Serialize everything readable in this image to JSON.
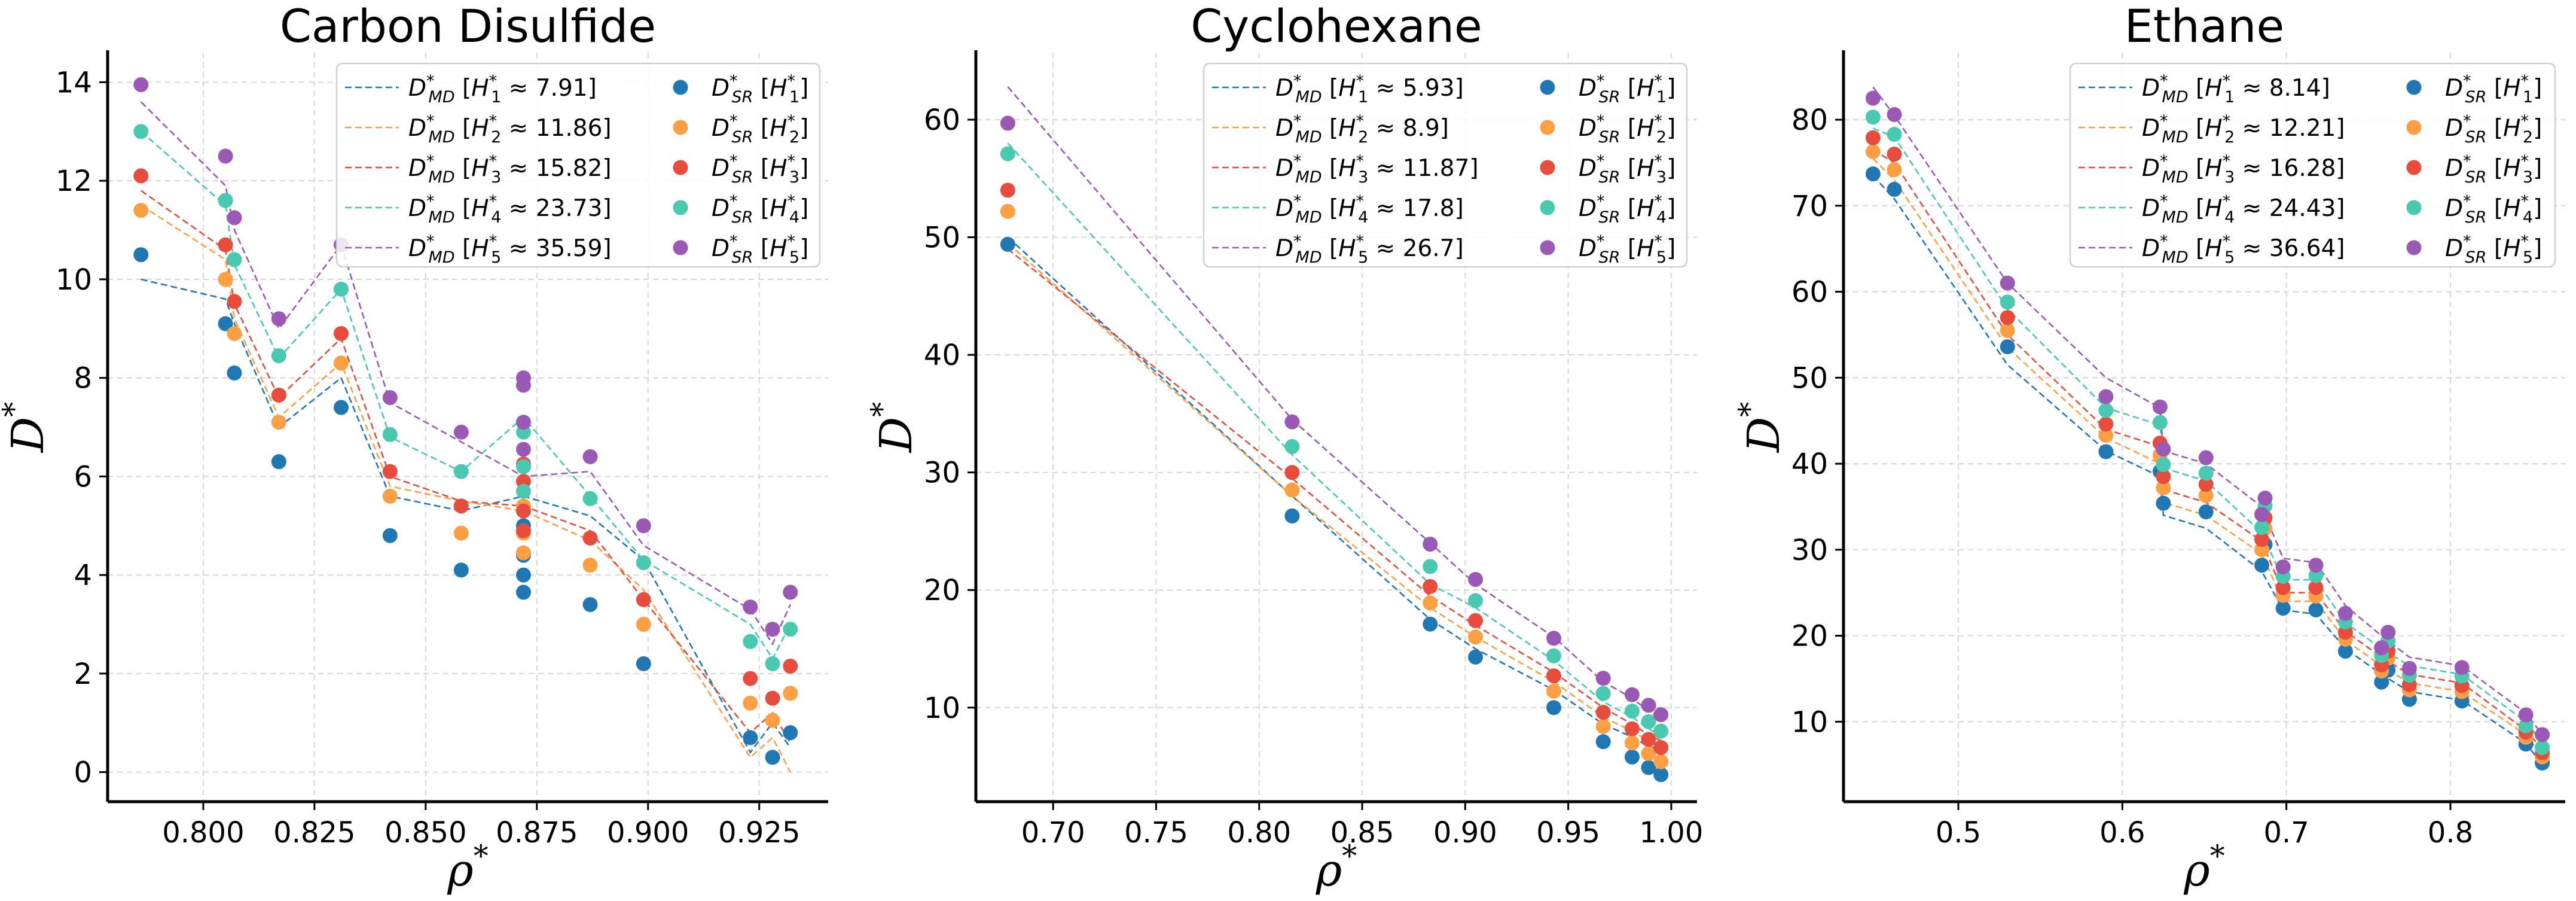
{
  "chart_data": [
    {
      "type": "line+scatter",
      "title": "Carbon Disulfide",
      "xlabel": "ρ",
      "xlabel_sup": "*",
      "ylabel": "D",
      "ylabel_sup": "*",
      "xlim": [
        0.7785,
        0.9405
      ],
      "ylim": [
        -0.6,
        14.6
      ],
      "xticks": [
        0.8,
        0.825,
        0.85,
        0.875,
        0.9,
        0.925
      ],
      "xtick_labels": [
        "0.800",
        "0.825",
        "0.850",
        "0.875",
        "0.900",
        "0.925"
      ],
      "yticks": [
        0,
        2,
        4,
        6,
        8,
        10,
        12,
        14
      ],
      "ytick_labels": [
        "0",
        "2",
        "4",
        "6",
        "8",
        "10",
        "12",
        "14"
      ],
      "grid": true,
      "legend": "top-right",
      "md_labels": [
        "7.91",
        "11.86",
        "15.82",
        "23.73",
        "35.59"
      ],
      "x": [
        0.786,
        0.805,
        0.807,
        0.817,
        0.831,
        0.842,
        0.858,
        0.872,
        0.887,
        0.899,
        0.923,
        0.928,
        0.932
      ],
      "md": [
        [
          10.0,
          9.6,
          9.1,
          7.0,
          8.0,
          5.6,
          5.3,
          5.6,
          5.2,
          4.3,
          0.4,
          1.0,
          0.5
        ],
        [
          11.5,
          10.4,
          9.2,
          7.2,
          8.3,
          5.8,
          5.5,
          5.3,
          4.7,
          3.7,
          0.3,
          0.7,
          0.0
        ],
        [
          11.8,
          10.6,
          9.5,
          7.6,
          8.8,
          6.0,
          5.5,
          5.4,
          4.9,
          3.5,
          0.8,
          1.2,
          0.6
        ],
        [
          13.0,
          11.5,
          10.3,
          8.4,
          9.8,
          6.8,
          6.1,
          7.2,
          5.6,
          4.3,
          3.0,
          2.3,
          3.0
        ],
        [
          13.6,
          11.9,
          11.0,
          9.0,
          10.7,
          7.5,
          6.7,
          6.0,
          6.1,
          4.6,
          3.3,
          2.6,
          3.4
        ]
      ],
      "sr_x": [
        0.786,
        0.805,
        0.807,
        0.817,
        0.831,
        0.842,
        0.858,
        0.872,
        0.872,
        0.872,
        0.872,
        0.887,
        0.899,
        0.923,
        0.928,
        0.932
      ],
      "sr": [
        [
          10.5,
          9.1,
          8.1,
          6.3,
          7.4,
          4.8,
          4.1,
          3.65,
          4.0,
          4.4,
          5.0,
          3.4,
          2.2,
          0.7,
          0.3,
          0.8
        ],
        [
          11.4,
          10.0,
          8.9,
          7.1,
          8.3,
          5.6,
          4.85,
          4.45,
          4.85,
          5.4,
          6.2,
          4.2,
          3.0,
          1.4,
          1.05,
          1.6
        ],
        [
          12.1,
          10.7,
          9.55,
          7.65,
          8.9,
          6.1,
          5.4,
          4.9,
          5.3,
          5.9,
          6.25,
          4.75,
          3.5,
          1.9,
          1.5,
          2.15
        ],
        [
          13.0,
          11.6,
          10.4,
          8.45,
          9.8,
          6.85,
          6.1,
          5.7,
          6.2,
          6.9,
          7.1,
          5.55,
          4.25,
          2.65,
          2.2,
          2.9
        ],
        [
          13.95,
          12.5,
          11.25,
          9.2,
          10.7,
          7.6,
          6.9,
          6.55,
          7.1,
          7.85,
          8.0,
          6.4,
          5.0,
          3.35,
          2.9,
          3.65
        ]
      ]
    },
    {
      "type": "line+scatter",
      "title": "Cyclohexane",
      "xlabel": "ρ",
      "xlabel_sup": "*",
      "ylabel": "D",
      "ylabel_sup": "*",
      "xlim": [
        0.6625,
        1.0125
      ],
      "ylim": [
        2,
        65.7
      ],
      "xticks": [
        0.7,
        0.75,
        0.8,
        0.85,
        0.9,
        0.95,
        1.0
      ],
      "xtick_labels": [
        "0.70",
        "0.75",
        "0.80",
        "0.85",
        "0.90",
        "0.95",
        "1.00"
      ],
      "yticks": [
        10,
        20,
        30,
        40,
        50,
        60
      ],
      "ytick_labels": [
        "10",
        "20",
        "30",
        "40",
        "50",
        "60"
      ],
      "grid": true,
      "legend": "top-right",
      "md_labels": [
        "5.93",
        "8.9",
        "11.87",
        "17.8",
        "26.7"
      ],
      "x": [
        0.678,
        0.816,
        0.883,
        0.905,
        0.943,
        0.967,
        0.981,
        0.989,
        0.995
      ],
      "md": [
        [
          50.0,
          28.0,
          17.5,
          15.0,
          11.5,
          8.6,
          7.5,
          6.7,
          6.5
        ],
        [
          49.5,
          28.0,
          18.5,
          16.0,
          12.2,
          9.2,
          8.0,
          7.2,
          6.9
        ],
        [
          49.0,
          29.5,
          19.5,
          17.0,
          13.0,
          10.0,
          8.6,
          7.7,
          7.2
        ],
        [
          58.0,
          31.5,
          20.5,
          18.5,
          14.0,
          10.5,
          9.2,
          8.2,
          7.6
        ],
        [
          62.8,
          34.5,
          24.0,
          20.5,
          16.0,
          12.2,
          10.8,
          9.7,
          9.0
        ]
      ],
      "sr_x": [
        0.678,
        0.816,
        0.883,
        0.905,
        0.943,
        0.967,
        0.981,
        0.989,
        0.995
      ],
      "sr": [
        [
          49.4,
          26.3,
          17.1,
          14.3,
          10.0,
          7.1,
          5.8,
          4.9,
          4.3
        ],
        [
          52.2,
          28.5,
          18.9,
          16.0,
          11.4,
          8.4,
          7.0,
          6.1,
          5.4
        ],
        [
          54.0,
          30.0,
          20.3,
          17.4,
          12.7,
          9.6,
          8.2,
          7.3,
          6.6
        ],
        [
          57.1,
          32.2,
          22.0,
          19.1,
          14.4,
          11.2,
          9.7,
          8.8,
          8.0
        ],
        [
          59.7,
          34.3,
          23.9,
          20.9,
          15.9,
          12.5,
          11.1,
          10.2,
          9.4
        ]
      ]
    },
    {
      "type": "line+scatter",
      "title": "Ethane",
      "xlabel": "ρ",
      "xlabel_sup": "*",
      "ylabel": "D",
      "ylabel_sup": "*",
      "xlim": [
        0.43,
        0.87
      ],
      "ylim": [
        0.7,
        87.8
      ],
      "xticks": [
        0.5,
        0.6,
        0.7,
        0.8
      ],
      "xtick_labels": [
        "0.5",
        "0.6",
        "0.7",
        "0.8"
      ],
      "yticks": [
        10,
        20,
        30,
        40,
        50,
        60,
        70,
        80
      ],
      "ytick_labels": [
        "10",
        "20",
        "30",
        "40",
        "50",
        "60",
        "70",
        "80"
      ],
      "grid": true,
      "legend": "top-right",
      "md_labels": [
        "8.14",
        "12.21",
        "16.28",
        "24.43",
        "36.64"
      ],
      "x": [
        0.448,
        0.461,
        0.53,
        0.59,
        0.623,
        0.625,
        0.651,
        0.685,
        0.698,
        0.718,
        0.736,
        0.758,
        0.775,
        0.807,
        0.846,
        0.856
      ],
      "md": [
        [
          73.5,
          70.8,
          51.5,
          41.5,
          38.5,
          34.0,
          32.5,
          27.5,
          23.0,
          22.5,
          18.5,
          15.5,
          13.5,
          12.5,
          7.5,
          5.0
        ],
        [
          75.5,
          73.0,
          53.5,
          43.0,
          40.0,
          35.5,
          34.0,
          29.5,
          24.0,
          24.0,
          19.5,
          16.5,
          14.5,
          13.5,
          8.5,
          6.0
        ],
        [
          76.5,
          75.0,
          55.0,
          44.0,
          42.0,
          37.0,
          35.5,
          31.0,
          25.0,
          25.0,
          20.5,
          17.5,
          15.5,
          14.5,
          9.0,
          6.8
        ],
        [
          79.0,
          78.0,
          58.0,
          46.5,
          44.5,
          39.5,
          38.0,
          32.0,
          26.5,
          26.5,
          21.5,
          18.5,
          16.5,
          15.5,
          10.0,
          7.5
        ],
        [
          83.8,
          80.5,
          61.0,
          50.0,
          46.5,
          41.5,
          40.0,
          35.0,
          29.0,
          28.5,
          23.5,
          20.0,
          17.5,
          16.5,
          11.0,
          8.5
        ]
      ],
      "sr_x": [
        0.448,
        0.461,
        0.53,
        0.59,
        0.623,
        0.625,
        0.651,
        0.685,
        0.687,
        0.698,
        0.718,
        0.736,
        0.758,
        0.762,
        0.775,
        0.807,
        0.846,
        0.856
      ],
      "sr": [
        [
          73.7,
          71.9,
          53.6,
          41.4,
          39.1,
          35.4,
          34.4,
          28.2,
          30.6,
          23.2,
          23.0,
          18.2,
          14.6,
          16.0,
          12.6,
          12.4,
          7.4,
          5.2
        ],
        [
          76.3,
          74.2,
          55.5,
          43.3,
          41.0,
          37.2,
          36.3,
          30.0,
          32.5,
          24.7,
          24.6,
          19.6,
          15.9,
          17.4,
          13.7,
          13.5,
          8.2,
          5.9
        ],
        [
          77.9,
          76.0,
          57.0,
          44.6,
          42.4,
          38.5,
          37.6,
          31.2,
          33.7,
          25.6,
          25.6,
          20.4,
          16.6,
          18.2,
          14.3,
          14.2,
          8.8,
          6.4
        ],
        [
          80.3,
          78.3,
          58.8,
          46.2,
          44.8,
          39.9,
          38.9,
          32.6,
          35.1,
          26.9,
          27.0,
          21.6,
          17.7,
          19.4,
          15.4,
          15.3,
          9.5,
          7.0
        ],
        [
          82.5,
          80.6,
          61.0,
          47.8,
          46.6,
          41.7,
          40.7,
          34.1,
          36.0,
          28.0,
          28.2,
          22.6,
          18.6,
          20.4,
          16.2,
          16.3,
          10.8,
          8.5
        ]
      ]
    }
  ],
  "series_colors": [
    "#1f77b4",
    "#ff9f43",
    "#e74c3c",
    "#48c9b0",
    "#9b59b6"
  ],
  "legend_labels": {
    "md_symbol": "D",
    "md_sub": "MD",
    "sr_symbol": "D",
    "sr_sub": "SR",
    "star": "*",
    "approx": "≈",
    "h_symbol": "H",
    "h_subs": [
      "1",
      "2",
      "3",
      "4",
      "5"
    ]
  }
}
